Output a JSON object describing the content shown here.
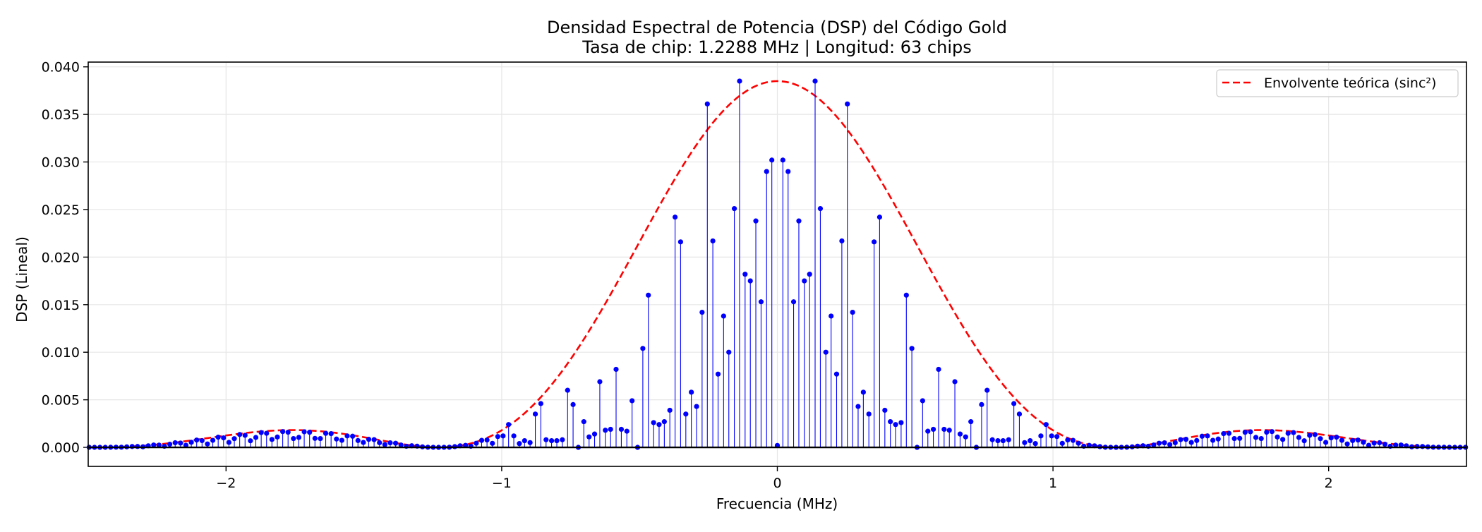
{
  "chart_data": {
    "type": "stem",
    "title": "Densidad Espectral de Potencia (DSP) del Código Gold",
    "subtitle": "Tasa de chip: 1.2288 MHz | Longitud: 63 chips",
    "xlabel": "Frecuencia (MHz)",
    "ylabel": "DSP (Lineal)",
    "xlim": [
      -2.5,
      2.5
    ],
    "ylim": [
      -0.002,
      0.0405
    ],
    "xticks": [
      -2,
      -1,
      0,
      1,
      2
    ],
    "xtick_labels": [
      "−2",
      "−1",
      "0",
      "1",
      "2"
    ],
    "yticks": [
      0.0,
      0.005,
      0.01,
      0.015,
      0.02,
      0.025,
      0.03,
      0.035,
      0.04
    ],
    "ytick_labels": [
      "0.000",
      "0.005",
      "0.010",
      "0.015",
      "0.020",
      "0.025",
      "0.030",
      "0.035",
      "0.040"
    ],
    "grid": true,
    "legend_position": "top-right",
    "chip_rate_mhz": 1.2288,
    "code_length": 63,
    "series": [
      {
        "name": "",
        "kind": "stem",
        "color": "#0000ff",
        "points": [
          [
            -0.02,
            0.0302
          ],
          [
            0.02,
            0.0302
          ],
          [
            -0.039,
            0.029
          ],
          [
            0.039,
            0.029
          ],
          [
            -0.059,
            0.0153
          ],
          [
            0.059,
            0.0153
          ],
          [
            -0.078,
            0.0238
          ],
          [
            0.078,
            0.0238
          ],
          [
            -0.098,
            0.0175
          ],
          [
            0.098,
            0.0175
          ],
          [
            -0.117,
            0.0182
          ],
          [
            0.117,
            0.0182
          ],
          [
            -0.137,
            0.0385
          ],
          [
            0.137,
            0.0385
          ],
          [
            -0.156,
            0.0251
          ],
          [
            0.156,
            0.0251
          ],
          [
            -0.176,
            0.01
          ],
          [
            0.176,
            0.01
          ],
          [
            -0.195,
            0.0138
          ],
          [
            0.195,
            0.0138
          ],
          [
            -0.215,
            0.0077
          ],
          [
            0.215,
            0.0077
          ],
          [
            -0.234,
            0.0217
          ],
          [
            0.234,
            0.0217
          ],
          [
            -0.254,
            0.0361
          ],
          [
            0.254,
            0.0361
          ],
          [
            -0.273,
            0.0142
          ],
          [
            0.273,
            0.0142
          ],
          [
            -0.293,
            0.0043
          ],
          [
            0.293,
            0.0043
          ],
          [
            -0.312,
            0.0058
          ],
          [
            0.312,
            0.0058
          ],
          [
            -0.332,
            0.0035
          ],
          [
            0.332,
            0.0035
          ],
          [
            -0.351,
            0.0216
          ],
          [
            0.351,
            0.0216
          ],
          [
            -0.371,
            0.0242
          ],
          [
            0.371,
            0.0242
          ],
          [
            -0.39,
            0.0039
          ],
          [
            0.39,
            0.0039
          ],
          [
            -0.41,
            0.0027
          ],
          [
            0.41,
            0.0027
          ],
          [
            -0.429,
            0.0024
          ],
          [
            0.429,
            0.0024
          ],
          [
            -0.449,
            0.0026
          ],
          [
            0.449,
            0.0026
          ],
          [
            -0.468,
            0.016
          ],
          [
            0.468,
            0.016
          ],
          [
            -0.488,
            0.0104
          ],
          [
            0.488,
            0.0104
          ],
          [
            -0.507,
            0.0
          ],
          [
            0.507,
            0.0
          ],
          [
            -0.527,
            0.0049
          ],
          [
            0.527,
            0.0049
          ],
          [
            -0.546,
            0.0017
          ],
          [
            0.546,
            0.0017
          ],
          [
            -0.566,
            0.0019
          ],
          [
            0.566,
            0.0019
          ],
          [
            -0.585,
            0.0082
          ],
          [
            0.585,
            0.0082
          ],
          [
            -0.605,
            0.0019
          ],
          [
            0.605,
            0.0019
          ],
          [
            -0.624,
            0.0018
          ],
          [
            0.624,
            0.0018
          ],
          [
            -0.644,
            0.0069
          ],
          [
            0.644,
            0.0069
          ],
          [
            -0.663,
            0.0014
          ],
          [
            0.663,
            0.0014
          ],
          [
            -0.683,
            0.0011
          ],
          [
            0.683,
            0.0011
          ],
          [
            -0.702,
            0.0027
          ],
          [
            0.702,
            0.0027
          ],
          [
            -0.722,
            0.0
          ],
          [
            0.722,
            0.0
          ],
          [
            -0.741,
            0.0045
          ],
          [
            0.741,
            0.0045
          ],
          [
            -0.761,
            0.006
          ],
          [
            0.761,
            0.006
          ],
          [
            -0.78,
            0.0008
          ],
          [
            0.78,
            0.0008
          ],
          [
            -0.8,
            0.0007
          ],
          [
            0.8,
            0.0007
          ],
          [
            -0.819,
            0.0007
          ],
          [
            0.819,
            0.0007
          ],
          [
            -0.839,
            0.0008
          ],
          [
            0.839,
            0.0008
          ],
          [
            -0.858,
            0.0046
          ],
          [
            0.858,
            0.0046
          ],
          [
            -0.878,
            0.0035
          ],
          [
            0.878,
            0.0035
          ],
          [
            -0.897,
            0.0005
          ],
          [
            0.897,
            0.0005
          ],
          [
            -0.917,
            0.0007
          ],
          [
            0.917,
            0.0007
          ],
          [
            -0.936,
            0.0004
          ],
          [
            0.936,
            0.0004
          ],
          [
            -0.956,
            0.0012
          ],
          [
            0.956,
            0.0012
          ],
          [
            -0.975,
            0.0024
          ],
          [
            0.975,
            0.0024
          ],
          [
            -0.995,
            0.0012
          ],
          [
            0.995,
            0.0012
          ],
          [
            0.0,
            0.0002
          ]
        ]
      },
      {
        "name": "Envolvente teórica (sinc²)",
        "kind": "dashed_line",
        "color": "#ff0000",
        "function": "0.0385 * sinc^2(f / 1.2288)"
      }
    ]
  }
}
